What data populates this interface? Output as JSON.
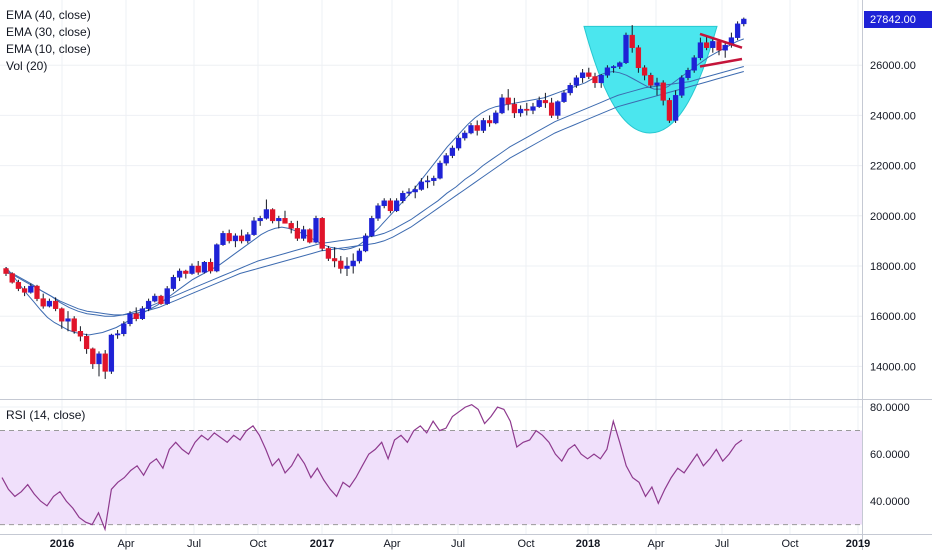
{
  "chart_data": {
    "type": "candlestick",
    "price_panel": {
      "legend": [
        "EMA (40, close)",
        "EMA (30, close)",
        "EMA (10, close)",
        "Vol (20)"
      ],
      "y_ticks": [
        "14000.00",
        "16000.00",
        "18000.00",
        "20000.00",
        "22000.00",
        "24000.00",
        "26000.00"
      ],
      "y_tick_values": [
        14000,
        16000,
        18000,
        20000,
        22000,
        24000,
        26000
      ],
      "ylim": [
        12700,
        28600
      ],
      "last_price": "27842.00",
      "last_price_value": 27842,
      "colors": {
        "up": "#1e22d6",
        "down": "#e0142a",
        "ema": "#3d6bb0",
        "cup": "#4be6ee",
        "pattern": "#c4143a",
        "last_price_bg": "#1e22d6"
      },
      "candles": [
        [
          17900,
          17960,
          17600,
          17700
        ],
        [
          17700,
          17750,
          17300,
          17350
        ],
        [
          17350,
          17450,
          17000,
          17100
        ],
        [
          17100,
          17200,
          16800,
          16950
        ],
        [
          16950,
          17300,
          16900,
          17200
        ],
        [
          17200,
          17250,
          16600,
          16700
        ],
        [
          16700,
          16900,
          16300,
          16400
        ],
        [
          16400,
          16700,
          16350,
          16600
        ],
        [
          16600,
          16750,
          16200,
          16300
        ],
        [
          16300,
          16350,
          15500,
          15800
        ],
        [
          15800,
          16200,
          15400,
          15900
        ],
        [
          15900,
          16000,
          15300,
          15400
        ],
        [
          15400,
          15600,
          15000,
          15200
        ],
        [
          15200,
          15300,
          14500,
          14700
        ],
        [
          14700,
          14750,
          13900,
          14100
        ],
        [
          14100,
          14600,
          13600,
          14500
        ],
        [
          14500,
          14650,
          13500,
          13800
        ],
        [
          13800,
          15300,
          13700,
          15250
        ],
        [
          15250,
          15450,
          15100,
          15300
        ],
        [
          15300,
          15800,
          15200,
          15700
        ],
        [
          15700,
          16200,
          15600,
          16100
        ],
        [
          16100,
          16350,
          15800,
          15900
        ],
        [
          15900,
          16400,
          15850,
          16300
        ],
        [
          16300,
          16700,
          16200,
          16600
        ],
        [
          16600,
          16900,
          16550,
          16800
        ],
        [
          16800,
          16850,
          16450,
          16500
        ],
        [
          16500,
          17200,
          16450,
          17100
        ],
        [
          17100,
          17650,
          17000,
          17550
        ],
        [
          17550,
          17900,
          17400,
          17800
        ],
        [
          17800,
          17850,
          17500,
          17700
        ],
        [
          17700,
          18100,
          17650,
          18000
        ],
        [
          18000,
          18200,
          17650,
          17750
        ],
        [
          17750,
          18200,
          17700,
          18150
        ],
        [
          18150,
          18300,
          17700,
          17800
        ],
        [
          17800,
          18900,
          17750,
          18850
        ],
        [
          18850,
          19400,
          18800,
          19300
        ],
        [
          19300,
          19450,
          18900,
          19000
        ],
        [
          19000,
          19300,
          18750,
          19200
        ],
        [
          19200,
          19450,
          18900,
          19000
        ],
        [
          19000,
          19350,
          18900,
          19250
        ],
        [
          19250,
          19950,
          19200,
          19800
        ],
        [
          19800,
          20000,
          19600,
          19900
        ],
        [
          19900,
          20650,
          19850,
          20250
        ],
        [
          20250,
          20300,
          19700,
          19800
        ],
        [
          19800,
          20000,
          19500,
          19900
        ],
        [
          19900,
          20200,
          19700,
          19700
        ],
        [
          19700,
          19800,
          19300,
          19500
        ],
        [
          19500,
          19800,
          19000,
          19100
        ],
        [
          19100,
          19600,
          19000,
          19450
        ],
        [
          19450,
          19500,
          18900,
          18950
        ],
        [
          18950,
          20000,
          18900,
          19900
        ],
        [
          19900,
          19950,
          18600,
          18700
        ],
        [
          18700,
          18800,
          18200,
          18300
        ],
        [
          18300,
          18750,
          17950,
          18200
        ],
        [
          18200,
          18400,
          17700,
          17900
        ],
        [
          17900,
          18350,
          17600,
          18000
        ],
        [
          18000,
          18500,
          17700,
          18200
        ],
        [
          18200,
          18700,
          18100,
          18600
        ],
        [
          18600,
          19300,
          18550,
          19200
        ],
        [
          19200,
          20000,
          19150,
          19900
        ],
        [
          19900,
          20500,
          19800,
          20400
        ],
        [
          20400,
          20700,
          20300,
          20600
        ],
        [
          20600,
          20700,
          20100,
          20200
        ],
        [
          20200,
          20700,
          20150,
          20600
        ],
        [
          20600,
          21000,
          20500,
          20900
        ],
        [
          20900,
          21100,
          20800,
          20950
        ],
        [
          20950,
          21200,
          20700,
          21050
        ],
        [
          21050,
          21500,
          21000,
          21350
        ],
        [
          21350,
          21600,
          21100,
          21400
        ],
        [
          21400,
          21600,
          21200,
          21500
        ],
        [
          21500,
          22200,
          21450,
          22100
        ],
        [
          22100,
          22500,
          22000,
          22400
        ],
        [
          22400,
          22800,
          22300,
          22700
        ],
        [
          22700,
          23200,
          22600,
          23100
        ],
        [
          23100,
          23400,
          23000,
          23300
        ],
        [
          23300,
          23700,
          23250,
          23600
        ],
        [
          23600,
          23800,
          23200,
          23400
        ],
        [
          23400,
          23900,
          23300,
          23800
        ],
        [
          23800,
          24000,
          23550,
          23700
        ],
        [
          23700,
          24200,
          23650,
          24100
        ],
        [
          24100,
          24850,
          24050,
          24700
        ],
        [
          24700,
          25050,
          24200,
          24450
        ],
        [
          24450,
          24700,
          23900,
          24100
        ],
        [
          24100,
          24400,
          23950,
          24250
        ],
        [
          24250,
          24500,
          24000,
          24200
        ],
        [
          24200,
          24500,
          24050,
          24350
        ],
        [
          24350,
          24750,
          24300,
          24600
        ],
        [
          24600,
          24900,
          24300,
          24500
        ],
        [
          24500,
          24700,
          23900,
          24000
        ],
        [
          24000,
          24600,
          23850,
          24550
        ],
        [
          24550,
          25000,
          24500,
          24900
        ],
        [
          24900,
          25300,
          24800,
          25200
        ],
        [
          25200,
          25600,
          25100,
          25500
        ],
        [
          25500,
          25850,
          25300,
          25700
        ],
        [
          25700,
          25900,
          25450,
          25550
        ],
        [
          25550,
          25700,
          25100,
          25300
        ],
        [
          25300,
          25650,
          25100,
          25600
        ],
        [
          25600,
          26000,
          25500,
          25900
        ],
        [
          25900,
          26000,
          25700,
          25950
        ],
        [
          25950,
          26150,
          25850,
          26100
        ],
        [
          26100,
          27300,
          26050,
          27200
        ],
        [
          27200,
          27600,
          26500,
          26700
        ],
        [
          26700,
          26800,
          25700,
          25900
        ],
        [
          25900,
          26000,
          25400,
          25600
        ],
        [
          25600,
          25700,
          25100,
          25200
        ],
        [
          25200,
          25500,
          24800,
          25300
        ],
        [
          25300,
          25400,
          24400,
          24600
        ],
        [
          24600,
          24700,
          23700,
          23800
        ],
        [
          23800,
          25000,
          23700,
          24800
        ],
        [
          24800,
          25600,
          24700,
          25500
        ],
        [
          25500,
          25900,
          25400,
          25800
        ],
        [
          25800,
          26400,
          25700,
          26300
        ],
        [
          26300,
          27100,
          26200,
          26900
        ],
        [
          26900,
          27200,
          26600,
          26700
        ],
        [
          26700,
          27100,
          26500,
          26950
        ],
        [
          26950,
          27000,
          26400,
          26600
        ],
        [
          26600,
          26900,
          26300,
          26800
        ],
        [
          26800,
          27300,
          26700,
          27100
        ],
        [
          27100,
          27750,
          27000,
          27650
        ],
        [
          27650,
          27900,
          27550,
          27842
        ]
      ],
      "ema10": [
        17950,
        17620,
        17240,
        16900,
        16580,
        16250,
        15950,
        15750,
        15600,
        15450,
        15350,
        15300,
        15250,
        15300,
        15350,
        15450,
        15550,
        15700,
        15850,
        16000,
        16150,
        16300,
        16450,
        16650,
        16850,
        17050,
        17250,
        17450,
        17600,
        17750,
        17900,
        18050,
        18250,
        18450,
        18650,
        18850,
        19050,
        19250,
        19400,
        19500,
        19550,
        19500,
        19400,
        19300,
        19150,
        19000,
        18850,
        18750,
        18700,
        18650,
        18700,
        18800,
        19000,
        19250,
        19500,
        19800,
        20100,
        20400,
        20700,
        21000,
        21350,
        21700,
        22050,
        22400,
        22750,
        23050,
        23350,
        23650,
        23900,
        24100,
        24250,
        24350,
        24400,
        24450,
        24500,
        24550,
        24600,
        24650,
        24700,
        24800,
        24900,
        25000,
        25100,
        25200,
        25300,
        25450,
        25600,
        25700,
        25750,
        25700,
        25600,
        25450,
        25300,
        25150,
        25050,
        25050,
        25150,
        25350,
        25550,
        25750,
        25950,
        26150,
        26350,
        26500,
        26650,
        26800,
        26950,
        27050
      ],
      "ema30": [
        17800,
        17650,
        17450,
        17250,
        17000,
        16800,
        16550,
        16350,
        16200,
        16100,
        16050,
        16000,
        16000,
        16050,
        16150,
        16250,
        16400,
        16550,
        16700,
        16850,
        17000,
        17150,
        17300,
        17450,
        17600,
        17750,
        17900,
        18050,
        18200,
        18300,
        18400,
        18500,
        18600,
        18700,
        18800,
        18900,
        18950,
        19000,
        19050,
        19100,
        19150,
        19200,
        19300,
        19450,
        19650,
        19850,
        20100,
        20350,
        20600,
        20900,
        21150,
        21450,
        21700,
        22000,
        22250,
        22500,
        22750,
        22950,
        23150,
        23350,
        23550,
        23750,
        23900,
        24050,
        24200,
        24350,
        24500,
        24650,
        24800,
        24900,
        25000,
        25100,
        25150,
        25200,
        25250,
        25300,
        25350,
        25450,
        25550,
        25650,
        25750,
        25850,
        25950
      ],
      "ema40": [
        17750,
        17600,
        17400,
        17200,
        17000,
        16800,
        16600,
        16450,
        16300,
        16200,
        16150,
        16100,
        16050,
        16050,
        16100,
        16150,
        16250,
        16350,
        16500,
        16650,
        16800,
        16950,
        17100,
        17250,
        17400,
        17550,
        17700,
        17800,
        17900,
        18000,
        18100,
        18200,
        18300,
        18400,
        18500,
        18600,
        18650,
        18700,
        18750,
        18800,
        18850,
        18900,
        19000,
        19150,
        19350,
        19550,
        19800,
        20050,
        20300,
        20550,
        20800,
        21050,
        21300,
        21550,
        21800,
        22050,
        22300,
        22500,
        22700,
        22900,
        23100,
        23300,
        23450,
        23600,
        23750,
        23900,
        24050,
        24200,
        24350,
        24450,
        24550,
        24650,
        24750,
        24850,
        24950,
        25050,
        25150,
        25250,
        25350,
        25450,
        25550,
        25650,
        25750
      ]
    },
    "rsi_panel": {
      "label": "RSI (14, close)",
      "y_ticks": [
        "40.0000",
        "60.0000",
        "80.0000"
      ],
      "y_tick_values": [
        40,
        60,
        80
      ],
      "ylim": [
        26,
        83
      ],
      "upper_band": 70,
      "lower_band": 30,
      "colors": {
        "line": "#8e3a8e",
        "band": "#f0e0fb",
        "band_edge": "#9a9a9a"
      },
      "values": [
        50,
        45,
        42,
        44,
        47,
        43,
        40,
        38,
        42,
        44,
        40,
        37,
        33,
        31,
        30,
        35,
        28,
        45,
        48,
        50,
        53,
        55,
        51,
        56,
        58,
        54,
        62,
        65,
        62,
        60,
        65,
        68,
        66,
        69,
        67,
        65,
        68,
        66,
        70,
        72,
        68,
        62,
        55,
        58,
        52,
        55,
        60,
        56,
        50,
        54,
        49,
        45,
        42,
        48,
        46,
        50,
        55,
        60,
        62,
        65,
        58,
        66,
        68,
        65,
        70,
        72,
        69,
        74,
        70,
        71,
        76,
        78,
        80,
        81,
        79,
        73,
        76,
        80,
        79,
        74,
        63,
        65,
        66,
        70,
        68,
        65,
        60,
        57,
        62,
        64,
        60,
        58,
        60,
        58,
        62,
        74,
        65,
        55,
        50,
        48,
        42,
        46,
        39,
        45,
        50,
        54,
        52,
        56,
        60,
        55,
        58,
        62,
        57,
        60,
        64,
        66
      ]
    },
    "time_axis": {
      "labels": [
        "2016",
        "Apr",
        "Jul",
        "Oct",
        "2017",
        "Apr",
        "Jul",
        "Oct",
        "2018",
        "Apr",
        "Jul",
        "Oct",
        "2019"
      ],
      "bold": [
        true,
        false,
        false,
        false,
        true,
        false,
        false,
        false,
        true,
        false,
        false,
        false,
        true
      ]
    }
  }
}
